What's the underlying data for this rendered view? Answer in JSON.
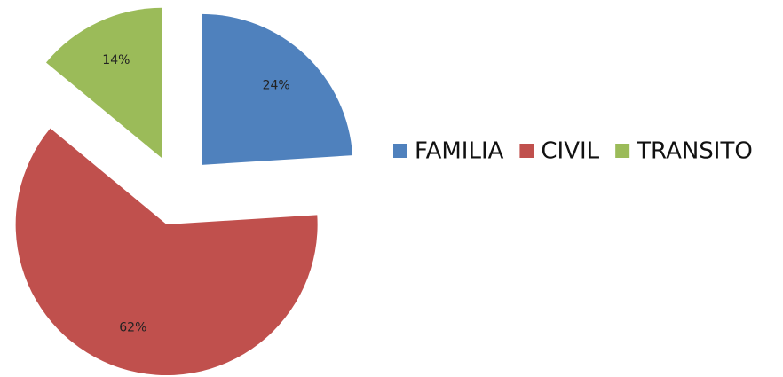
{
  "chart_data": {
    "type": "pie",
    "categories": [
      "FAMILIA",
      "CIVIL",
      "TRANSITO"
    ],
    "values": [
      24,
      62,
      14
    ],
    "value_labels": [
      "24%",
      "62%",
      "14%"
    ],
    "colors": [
      "#4f81bd",
      "#c0504d",
      "#9bbb59"
    ],
    "exploded": true,
    "legend": "right"
  }
}
